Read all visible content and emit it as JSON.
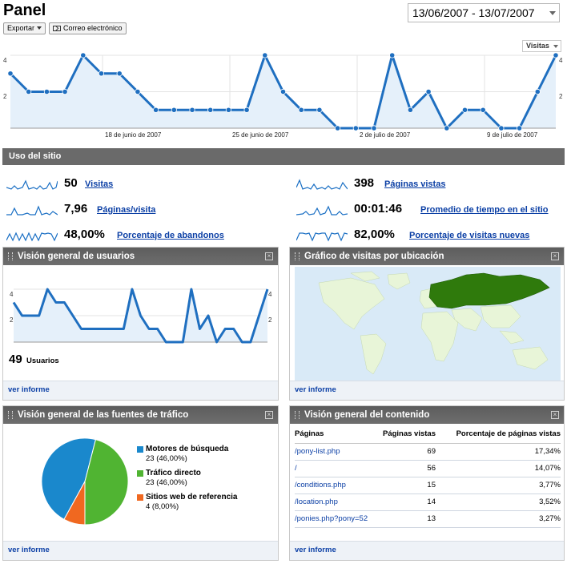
{
  "header": {
    "title": "Panel",
    "date_range": "13/06/2007 - 13/07/2007",
    "export_label": "Exportar",
    "email_label": "Correo electrónico",
    "metric_selector": "Visitas"
  },
  "main_chart": {
    "y_ticks": [
      "4",
      "2"
    ],
    "y_ticks_right": [
      "4",
      "2"
    ],
    "x_labels": [
      "18 de junio de 2007",
      "25 de junio de 2007",
      "2 de julio de 2007",
      "9 de julio de 2007"
    ]
  },
  "chart_data": [
    {
      "type": "line",
      "title": "",
      "series": [
        {
          "name": "Visitas",
          "values": [
            3,
            2,
            2,
            2,
            4,
            3,
            3,
            2,
            1,
            1,
            1,
            1,
            1,
            1,
            4,
            2,
            1,
            1,
            0,
            0,
            0,
            4,
            1,
            2,
            0,
            1,
            1,
            0,
            0,
            2,
            4
          ]
        }
      ],
      "ylim": [
        0,
        4
      ]
    },
    {
      "type": "line",
      "title": "Visión general de usuarios",
      "series": [
        {
          "name": "Usuarios",
          "values": [
            3,
            2,
            2,
            2,
            4,
            3,
            3,
            2,
            1,
            1,
            1,
            1,
            1,
            1,
            4,
            2,
            1,
            1,
            0,
            0,
            0,
            4,
            1,
            2,
            0,
            1,
            1,
            0,
            0,
            2,
            4
          ]
        }
      ],
      "ylim": [
        0,
        4
      ]
    },
    {
      "type": "pie",
      "title": "Visión general de las fuentes de tráfico",
      "categories": [
        "Motores de búsqueda",
        "Tráfico directo",
        "Sitios web de referencia"
      ],
      "values": [
        23,
        23,
        4
      ]
    }
  ],
  "site_usage": {
    "title": "Uso del sitio",
    "stats": [
      {
        "value": "50",
        "label": "Visitas"
      },
      {
        "value": "7,96",
        "label": "Páginas/visita"
      },
      {
        "value": "48,00%",
        "label": "Porcentaje de abandonos"
      },
      {
        "value": "398",
        "label": "Páginas vistas"
      },
      {
        "value": "00:01:46",
        "label": "Promedio de tiempo en el sitio"
      },
      {
        "value": "82,00%",
        "label": "Porcentaje de visitas nuevas"
      }
    ]
  },
  "users_panel": {
    "title": "Visión general de usuarios",
    "y_ticks": [
      "4",
      "2"
    ],
    "total": "49",
    "total_label": "Usuarios",
    "footer_link": "ver informe"
  },
  "map_panel": {
    "title": "Gráfico de visitas por ubicación",
    "footer_link": "ver informe",
    "colors": {
      "ocean": "#d9eaf7",
      "land": "#e8f5d8",
      "active": "#2f7a0c"
    }
  },
  "traffic_panel": {
    "title": "Visión general de las fuentes de tráfico",
    "legend": [
      {
        "name": "Motores de búsqueda",
        "detail": "23 (46,00%)",
        "color": "#1a88cc"
      },
      {
        "name": "Tráfico directo",
        "detail": "23 (46,00%)",
        "color": "#50b432"
      },
      {
        "name": "Sitios web de referencia",
        "detail": "4 (8,00%)",
        "color": "#f06820"
      }
    ],
    "footer_link": "ver informe"
  },
  "content_panel": {
    "title": "Visión general del contenido",
    "columns": [
      "Páginas",
      "Páginas vistas",
      "Porcentaje de páginas vistas"
    ],
    "rows": [
      {
        "page": "/pony-list.php",
        "views": "69",
        "pct": "17,34%"
      },
      {
        "page": "/",
        "views": "56",
        "pct": "14,07%"
      },
      {
        "page": "/conditions.php",
        "views": "15",
        "pct": "3,77%"
      },
      {
        "page": "/location.php",
        "views": "14",
        "pct": "3,52%"
      },
      {
        "page": "/ponies.php?pony=52",
        "views": "13",
        "pct": "3,27%"
      }
    ],
    "footer_link": "ver informe"
  }
}
